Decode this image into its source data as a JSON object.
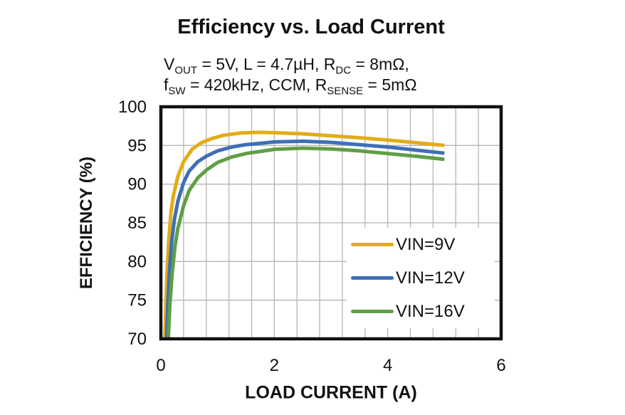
{
  "chart_data": {
    "type": "line",
    "title": "Efficiency vs. Load Current",
    "subtitle_segments": [
      [
        {
          "t": "V"
        },
        {
          "t": "OUT",
          "sub": true
        },
        {
          "t": " = 5V, L = 4.7µH, R"
        },
        {
          "t": "DC",
          "sub": true
        },
        {
          "t": " = 8mΩ,"
        }
      ],
      [
        {
          "t": "f"
        },
        {
          "t": "SW",
          "sub": true
        },
        {
          "t": " = 420kHz, CCM, R"
        },
        {
          "t": "SENSE",
          "sub": true
        },
        {
          "t": " = 5mΩ"
        }
      ]
    ],
    "xlabel": "LOAD CURRENT (A)",
    "ylabel": "EFFICIENCY (%)",
    "xlim": [
      0,
      6
    ],
    "ylim": [
      70,
      100
    ],
    "xticks": [
      "0",
      "2",
      "4",
      "6"
    ],
    "xtick_values": [
      0,
      2,
      4,
      6
    ],
    "yticks": [
      "70",
      "75",
      "80",
      "85",
      "90",
      "95",
      "100"
    ],
    "ytick_values": [
      70,
      75,
      80,
      85,
      90,
      95,
      100
    ],
    "grid": true,
    "x_minor_grid_step": 0.4,
    "y_grid_step": 5,
    "grid_color": "#b5b5b5",
    "axis_color": "#111111",
    "curve_width": 5,
    "legend_position": "inside-lower-right",
    "series": [
      {
        "name": "VIN=9V",
        "color": "#e3ac17",
        "points": [
          [
            0.07,
            70
          ],
          [
            0.09,
            75
          ],
          [
            0.11,
            79
          ],
          [
            0.14,
            83
          ],
          [
            0.18,
            86.5
          ],
          [
            0.22,
            88.5
          ],
          [
            0.3,
            91
          ],
          [
            0.4,
            92.9
          ],
          [
            0.55,
            94.5
          ],
          [
            0.7,
            95.3
          ],
          [
            0.9,
            95.9
          ],
          [
            1.1,
            96.3
          ],
          [
            1.4,
            96.6
          ],
          [
            1.7,
            96.7
          ],
          [
            2.0,
            96.65
          ],
          [
            2.5,
            96.5
          ],
          [
            3.0,
            96.25
          ],
          [
            3.5,
            96.0
          ],
          [
            4.0,
            95.7
          ],
          [
            4.5,
            95.35
          ],
          [
            5.0,
            95.0
          ]
        ]
      },
      {
        "name": "VIN=12V",
        "color": "#3e6fb6",
        "points": [
          [
            0.1,
            70
          ],
          [
            0.12,
            74
          ],
          [
            0.15,
            78.5
          ],
          [
            0.19,
            82.5
          ],
          [
            0.24,
            85.5
          ],
          [
            0.3,
            87.8
          ],
          [
            0.4,
            90.2
          ],
          [
            0.5,
            91.7
          ],
          [
            0.65,
            92.9
          ],
          [
            0.8,
            93.6
          ],
          [
            1.0,
            94.3
          ],
          [
            1.25,
            94.8
          ],
          [
            1.5,
            95.1
          ],
          [
            2.0,
            95.45
          ],
          [
            2.5,
            95.55
          ],
          [
            3.0,
            95.4
          ],
          [
            3.5,
            95.1
          ],
          [
            4.0,
            94.8
          ],
          [
            4.5,
            94.4
          ],
          [
            5.0,
            94.0
          ]
        ]
      },
      {
        "name": "VIN=16V",
        "color": "#5f9f45",
        "points": [
          [
            0.13,
            70
          ],
          [
            0.16,
            74.5
          ],
          [
            0.2,
            78.5
          ],
          [
            0.25,
            82
          ],
          [
            0.3,
            84.3
          ],
          [
            0.4,
            87.2
          ],
          [
            0.5,
            89.2
          ],
          [
            0.65,
            90.8
          ],
          [
            0.8,
            91.8
          ],
          [
            1.0,
            92.8
          ],
          [
            1.25,
            93.5
          ],
          [
            1.5,
            93.95
          ],
          [
            2.0,
            94.5
          ],
          [
            2.5,
            94.65
          ],
          [
            3.0,
            94.55
          ],
          [
            3.5,
            94.3
          ],
          [
            4.0,
            93.95
          ],
          [
            4.5,
            93.6
          ],
          [
            5.0,
            93.2
          ]
        ]
      }
    ]
  }
}
